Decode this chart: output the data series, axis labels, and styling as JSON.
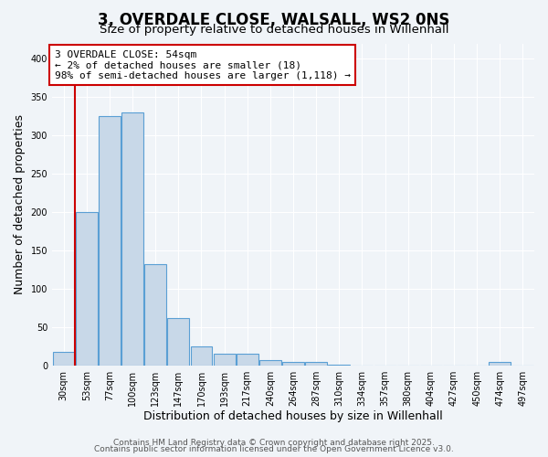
{
  "title": "3, OVERDALE CLOSE, WALSALL, WS2 0NS",
  "subtitle": "Size of property relative to detached houses in Willenhall",
  "xlabel": "Distribution of detached houses by size in Willenhall",
  "ylabel": "Number of detached properties",
  "bar_labels": [
    "30sqm",
    "53sqm",
    "77sqm",
    "100sqm",
    "123sqm",
    "147sqm",
    "170sqm",
    "193sqm",
    "217sqm",
    "240sqm",
    "264sqm",
    "287sqm",
    "310sqm",
    "334sqm",
    "357sqm",
    "380sqm",
    "404sqm",
    "427sqm",
    "450sqm",
    "474sqm",
    "497sqm"
  ],
  "bar_values": [
    18,
    200,
    325,
    330,
    132,
    62,
    25,
    15,
    15,
    7,
    4,
    4,
    1,
    0,
    0,
    0,
    0,
    0,
    0,
    4,
    0
  ],
  "bar_color": "#c8d8e8",
  "bar_edge_color": "#5a9fd4",
  "red_line_x": 0.505,
  "red_line_color": "#cc0000",
  "annotation_title": "3 OVERDALE CLOSE: 54sqm",
  "annotation_line1": "← 2% of detached houses are smaller (18)",
  "annotation_line2": "98% of semi-detached houses are larger (1,118) →",
  "annotation_box_color": "#ffffff",
  "annotation_box_edge": "#cc0000",
  "ylim": [
    0,
    420
  ],
  "yticks": [
    0,
    50,
    100,
    150,
    200,
    250,
    300,
    350,
    400
  ],
  "footer1": "Contains HM Land Registry data © Crown copyright and database right 2025.",
  "footer2": "Contains public sector information licensed under the Open Government Licence v3.0.",
  "bg_color": "#f0f4f8",
  "grid_color": "#ffffff",
  "title_fontsize": 12,
  "subtitle_fontsize": 9.5,
  "axis_label_fontsize": 9,
  "tick_fontsize": 7,
  "footer_fontsize": 6.5,
  "annotation_fontsize": 8
}
